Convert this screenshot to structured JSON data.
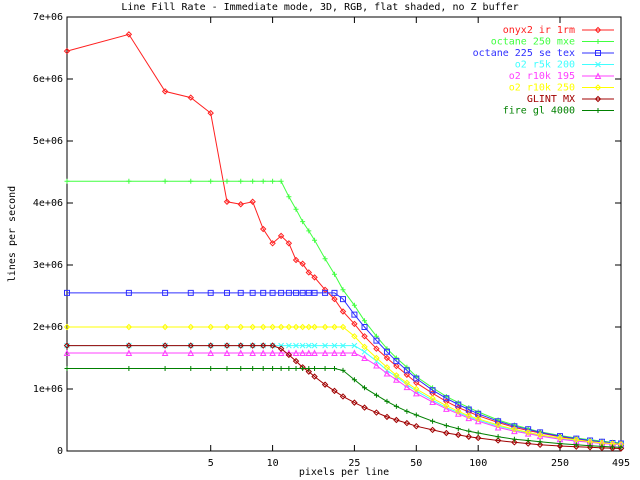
{
  "chart_data": {
    "type": "line",
    "title": "Line Fill Rate - Immediate mode, 3D, RGB, flat shaded, no Z buffer",
    "x_label": "pixels per line",
    "y_label": "lines per second",
    "x_scale": "log",
    "grid": false,
    "legend": "top-right",
    "xlim": [
      1,
      495
    ],
    "xticks": [
      5,
      10,
      25,
      50,
      100,
      250,
      495
    ],
    "ylim": [
      0,
      7000000
    ],
    "yticks": [
      0,
      {
        "value": 1000000,
        "label": "1e+06"
      },
      {
        "value": 2000000,
        "label": "2e+06"
      },
      {
        "value": 3000000,
        "label": "3e+06"
      },
      {
        "value": 4000000,
        "label": "4e+06"
      },
      {
        "value": 5000000,
        "label": "5e+06"
      },
      {
        "value": 6000000,
        "label": "6e+06"
      },
      {
        "value": 7000000,
        "label": "7e+06"
      }
    ],
    "x": [
      1,
      2,
      3,
      4,
      5,
      6,
      7,
      8,
      9,
      10,
      11,
      12,
      13,
      14,
      15,
      16,
      18,
      20,
      22,
      25,
      28,
      32,
      36,
      40,
      45,
      50,
      60,
      70,
      80,
      90,
      100,
      125,
      150,
      175,
      200,
      250,
      300,
      350,
      400,
      450,
      495
    ],
    "series": [
      {
        "name": "onyx2 ir 1rm",
        "color": "#ff2020",
        "marker": "diamond",
        "values": [
          6450000.0,
          6720000.0,
          5800000.0,
          5700000.0,
          5450000.0,
          4020000.0,
          3980000.0,
          4020000.0,
          3580000.0,
          3350000.0,
          3470000.0,
          3350000.0,
          3080000.0,
          3020000.0,
          2880000.0,
          2800000.0,
          2600000.0,
          2450000.0,
          2250000.0,
          2050000.0,
          1850000.0,
          1650000.0,
          1500000.0,
          1370000.0,
          1230000.0,
          1100000.0,
          930000.0,
          800000.0,
          700000.0,
          630000.0,
          570000.0,
          460000.0,
          380000.0,
          330000.0,
          290000.0,
          230000.0,
          190000.0,
          160000.0,
          140000.0,
          130000.0,
          120000.0
        ]
      },
      {
        "name": "octane 250 mxe",
        "color": "#40ff40",
        "marker": "plus",
        "values": [
          4350000.0,
          4350000.0,
          4350000.0,
          4350000.0,
          4350000.0,
          4350000.0,
          4350000.0,
          4350000.0,
          4350000.0,
          4350000.0,
          4350000.0,
          4100000.0,
          3900000.0,
          3700000.0,
          3550000.0,
          3400000.0,
          3100000.0,
          2850000.0,
          2600000.0,
          2350000.0,
          2100000.0,
          1850000.0,
          1650000.0,
          1500000.0,
          1350000.0,
          1200000.0,
          1020000.0,
          880000.0,
          780000.0,
          700000.0,
          630000.0,
          500000.0,
          420000.0,
          360000.0,
          310000.0,
          250000.0,
          210000.0,
          180000.0,
          160000.0,
          140000.0,
          130000.0
        ]
      },
      {
        "name": "octane 225 se tex",
        "color": "#3030ff",
        "marker": "square",
        "values": [
          2550000.0,
          2550000.0,
          2550000.0,
          2550000.0,
          2550000.0,
          2550000.0,
          2550000.0,
          2550000.0,
          2550000.0,
          2550000.0,
          2550000.0,
          2550000.0,
          2550000.0,
          2550000.0,
          2550000.0,
          2550000.0,
          2550000.0,
          2550000.0,
          2450000.0,
          2200000.0,
          2000000.0,
          1780000.0,
          1600000.0,
          1450000.0,
          1300000.0,
          1170000.0,
          980000.0,
          850000.0,
          750000.0,
          670000.0,
          600000.0,
          480000.0,
          400000.0,
          350000.0,
          300000.0,
          240000.0,
          200000.0,
          170000.0,
          150000.0,
          130000.0,
          120000.0
        ]
      },
      {
        "name": "o2 r5k 200",
        "color": "#40ffff",
        "marker": "cross",
        "values": [
          1700000.0,
          1700000.0,
          1700000.0,
          1700000.0,
          1700000.0,
          1700000.0,
          1700000.0,
          1700000.0,
          1700000.0,
          1700000.0,
          1700000.0,
          1700000.0,
          1700000.0,
          1700000.0,
          1700000.0,
          1700000.0,
          1700000.0,
          1700000.0,
          1700000.0,
          1700000.0,
          1600000.0,
          1450000.0,
          1300000.0,
          1200000.0,
          1070000.0,
          970000.0,
          820000.0,
          700000.0,
          620000.0,
          550000.0,
          500000.0,
          400000.0,
          340000.0,
          290000.0,
          250000.0,
          200000.0,
          170000.0,
          150000.0,
          130000.0,
          120000.0,
          110000.0
        ]
      },
      {
        "name": "o2 r10k 195",
        "color": "#ff40ff",
        "marker": "triangle",
        "values": [
          1580000.0,
          1580000.0,
          1580000.0,
          1580000.0,
          1580000.0,
          1580000.0,
          1580000.0,
          1580000.0,
          1580000.0,
          1580000.0,
          1580000.0,
          1580000.0,
          1580000.0,
          1580000.0,
          1580000.0,
          1580000.0,
          1580000.0,
          1580000.0,
          1580000.0,
          1580000.0,
          1500000.0,
          1380000.0,
          1250000.0,
          1150000.0,
          1030000.0,
          930000.0,
          790000.0,
          680000.0,
          600000.0,
          530000.0,
          480000.0,
          380000.0,
          320000.0,
          280000.0,
          240000.0,
          190000.0,
          160000.0,
          140000.0,
          120000.0,
          110000.0,
          100000.0
        ]
      },
      {
        "name": "o2 r10k 250",
        "color": "#ffff00",
        "marker": "diamond",
        "values": [
          2000000.0,
          2000000.0,
          2000000.0,
          2000000.0,
          2000000.0,
          2000000.0,
          2000000.0,
          2000000.0,
          2000000.0,
          2000000.0,
          2000000.0,
          2000000.0,
          2000000.0,
          2000000.0,
          2000000.0,
          2000000.0,
          2000000.0,
          2000000.0,
          2000000.0,
          1850000.0,
          1680000.0,
          1500000.0,
          1350000.0,
          1220000.0,
          1100000.0,
          1000000.0,
          850000.0,
          730000.0,
          640000.0,
          570000.0,
          520000.0,
          420000.0,
          350000.0,
          300000.0,
          260000.0,
          210000.0,
          180000.0,
          150000.0,
          130000.0,
          120000.0,
          110000.0
        ]
      },
      {
        "name": "GLINT MX",
        "color": "#a00000",
        "marker": "diamond",
        "values": [
          1700000.0,
          1700000.0,
          1700000.0,
          1700000.0,
          1700000.0,
          1700000.0,
          1700000.0,
          1700000.0,
          1700000.0,
          1700000.0,
          1650000.0,
          1550000.0,
          1450000.0,
          1350000.0,
          1280000.0,
          1200000.0,
          1070000.0,
          970000.0,
          880000.0,
          780000.0,
          700000.0,
          620000.0,
          550000.0,
          500000.0,
          450000.0,
          400000.0,
          340000.0,
          290000.0,
          260000.0,
          230000.0,
          210000.0,
          170000.0,
          140000.0,
          120000.0,
          100000.0,
          80000.0,
          70000.0,
          60000.0,
          50000.0,
          45000.0,
          40000.0
        ]
      },
      {
        "name": "fire gl 4000",
        "color": "#008000",
        "marker": "plus",
        "values": [
          1330000.0,
          1330000.0,
          1330000.0,
          1330000.0,
          1330000.0,
          1330000.0,
          1330000.0,
          1330000.0,
          1330000.0,
          1330000.0,
          1330000.0,
          1330000.0,
          1330000.0,
          1330000.0,
          1330000.0,
          1330000.0,
          1330000.0,
          1330000.0,
          1300000.0,
          1150000.0,
          1020000.0,
          900000.0,
          800000.0,
          720000.0,
          640000.0,
          580000.0,
          480000.0,
          410000.0,
          360000.0,
          320000.0,
          290000.0,
          230000.0,
          190000.0,
          170000.0,
          150000.0,
          120000.0,
          100000.0,
          85000.0,
          75000.0,
          65000.0,
          60000.0
        ]
      }
    ]
  }
}
